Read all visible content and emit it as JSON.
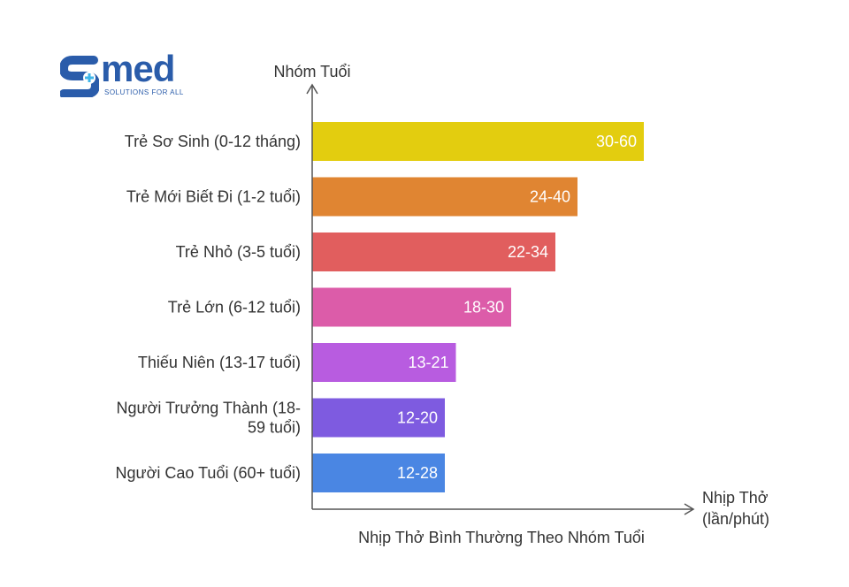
{
  "logo": {
    "word": "med",
    "tagline": "SOLUTIONS FOR ALL"
  },
  "chart_data": {
    "type": "bar",
    "orientation": "horizontal",
    "title": "Nhịp Thở Bình Thường Theo Nhóm Tuổi",
    "ylabel": "Nhóm Tuổi",
    "xlabel": "Nhịp Thở (lần/phút)",
    "xlabel_lines": [
      "Nhịp Thở",
      "(lần/phút)"
    ],
    "categories": [
      "Trẻ Sơ Sinh (0-12 tháng)",
      "Trẻ Mới Biết Đi (1-2 tuổi)",
      "Trẻ Nhỏ (3-5 tuổi)",
      "Trẻ Lớn (6-12 tuổi)",
      "Thiếu Niên (13-17 tuổi)",
      "Người Trưởng Thành (18-59 tuổi)",
      "Người Cao Tuổi (60+ tuổi)"
    ],
    "category_lines": [
      [
        "Trẻ Sơ Sinh (0-12 tháng)"
      ],
      [
        "Trẻ Mới Biết Đi (1-2 tuổi)"
      ],
      [
        "Trẻ Nhỏ (3-5 tuổi)"
      ],
      [
        "Trẻ Lớn (6-12 tuổi)"
      ],
      [
        "Thiếu Niên (13-17 tuổi)"
      ],
      [
        "Người Trưởng Thành (18-",
        "59 tuổi)"
      ],
      [
        "Người Cao Tuổi (60+ tuổi)"
      ]
    ],
    "labels": [
      "30-60",
      "24-40",
      "22-34",
      "18-30",
      "13-21",
      "12-20",
      "12-28"
    ],
    "values": [
      60,
      48,
      44,
      36,
      26,
      24,
      24
    ],
    "xlim": [
      0,
      64
    ],
    "colors": [
      "#e3cd0f",
      "#e08532",
      "#e15e5e",
      "#dc5ca9",
      "#b85ce0",
      "#7e5be0",
      "#4a86e3"
    ],
    "grid": false,
    "legend": "none"
  }
}
